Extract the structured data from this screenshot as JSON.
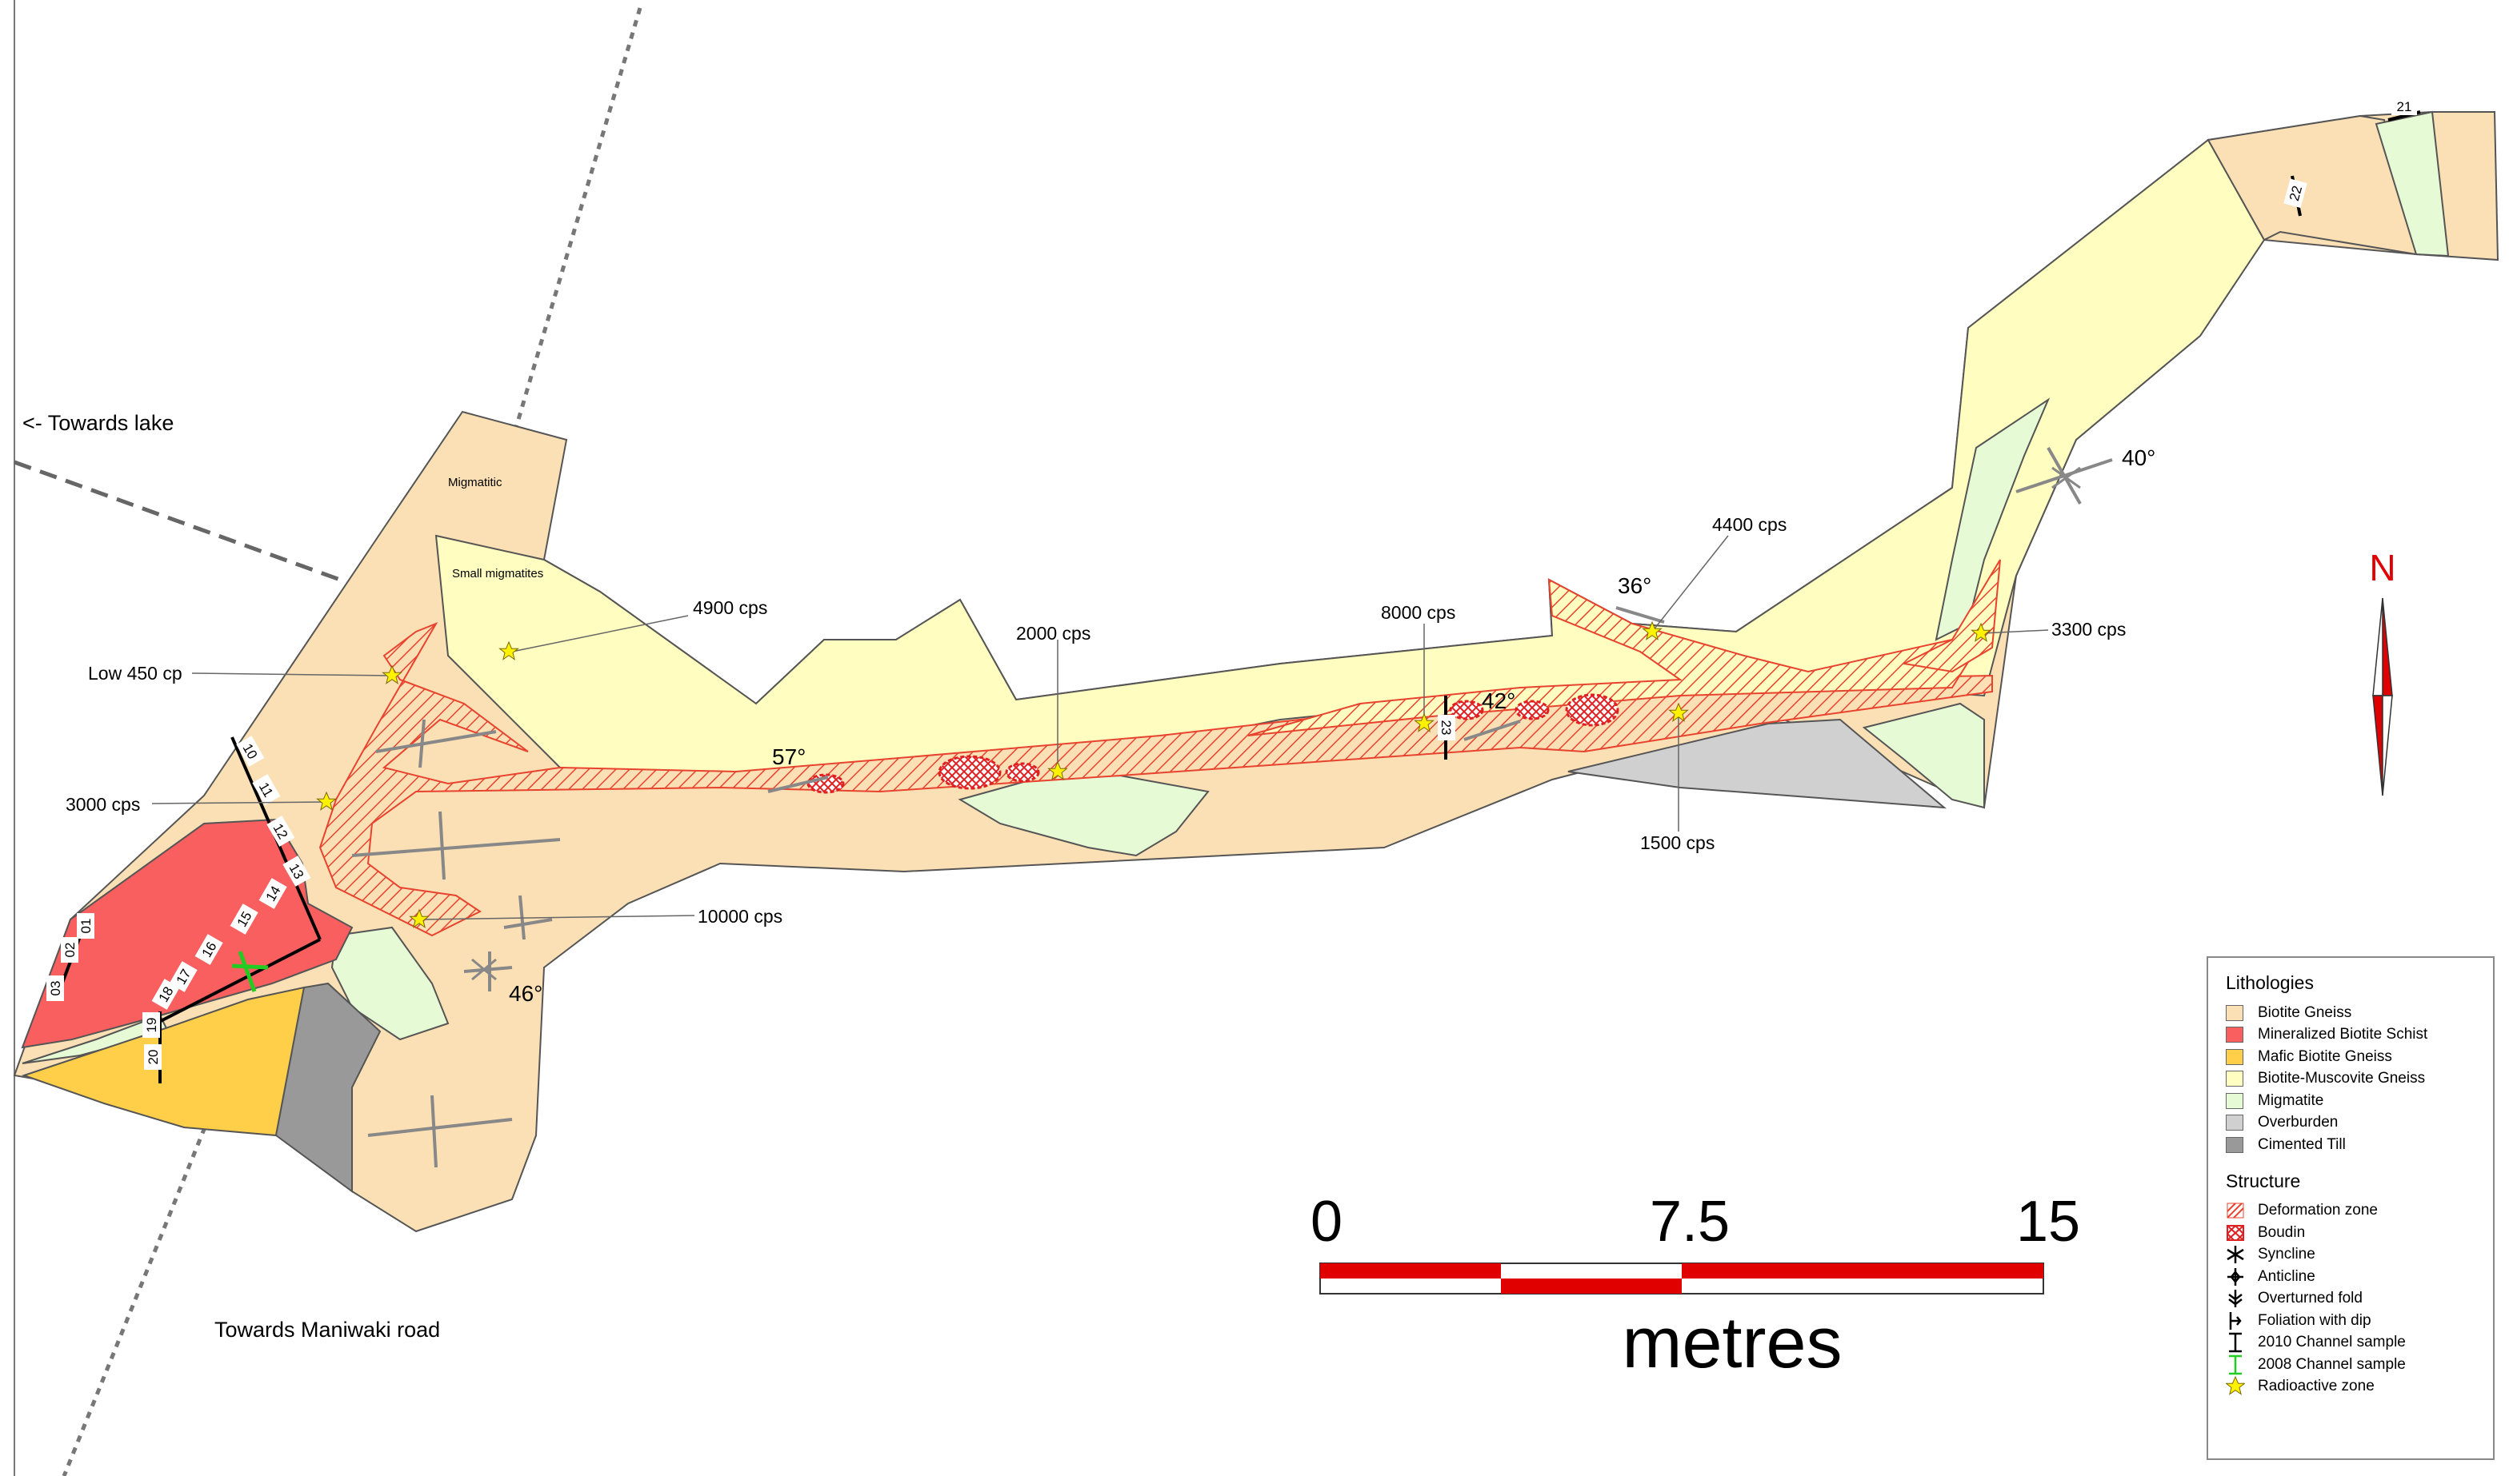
{
  "labels": {
    "towards_lake": "<- Towards lake",
    "towards_road": "Towards Maniwaki road",
    "migmatitic": "Migmatitic",
    "small_migmatites": "Small migmatites"
  },
  "radioactive_readings": [
    {
      "id": "low450",
      "text": "Low 450 cp"
    },
    {
      "id": "r3000",
      "text": "3000 cps"
    },
    {
      "id": "r4900",
      "text": "4900 cps"
    },
    {
      "id": "r10000",
      "text": "10000 cps"
    },
    {
      "id": "r2000",
      "text": "2000 cps"
    },
    {
      "id": "r8000",
      "text": "8000 cps"
    },
    {
      "id": "r4400",
      "text": "4400 cps"
    },
    {
      "id": "r1500",
      "text": "1500 cps"
    },
    {
      "id": "r3300",
      "text": "3300 cps"
    }
  ],
  "dips": [
    "57°",
    "42°",
    "36°",
    "40°",
    "46°"
  ],
  "samples": [
    "01",
    "02",
    "03",
    "10",
    "11",
    "12",
    "13",
    "14",
    "15",
    "16",
    "17",
    "18",
    "19",
    "20",
    "21",
    "22",
    "23"
  ],
  "north": "N",
  "scale": {
    "start": "0",
    "mid": "7.5",
    "end": "15",
    "unit": "metres"
  },
  "legend": {
    "lithologies_title": "Lithologies",
    "lithologies": [
      {
        "label": "Biotite Gneiss",
        "color": "#FAE0B4"
      },
      {
        "label": "Mineralized Biotite Schist",
        "color": "#FA5F5F"
      },
      {
        "label": "Mafic Biotite Gneiss",
        "color": "#FFCF49"
      },
      {
        "label": "Biotite-Muscovite Gneiss",
        "color": "#FFFDBF"
      },
      {
        "label": "Migmatite",
        "color": "#E7FAD6"
      },
      {
        "label": "Overburden",
        "color": "#D0D0D0"
      },
      {
        "label": "Cimented Till",
        "color": "#999999"
      }
    ],
    "structure_title": "Structure",
    "structures": [
      {
        "label": "Deformation zone",
        "icon": "deformation-zone-icon"
      },
      {
        "label": "Boudin",
        "icon": "boudin-icon"
      },
      {
        "label": "Syncline",
        "icon": "syncline-icon"
      },
      {
        "label": "Anticline",
        "icon": "anticline-icon"
      },
      {
        "label": "Overturned fold",
        "icon": "overturned-fold-icon"
      },
      {
        "label": "Foliation with dip",
        "icon": "foliation-dip-icon"
      },
      {
        "label": "2010 Channel sample",
        "icon": "channel-2010-icon"
      },
      {
        "label": "2008 Channel sample",
        "icon": "channel-2008-icon"
      },
      {
        "label": "Radioactive zone",
        "icon": "star-icon"
      }
    ]
  }
}
